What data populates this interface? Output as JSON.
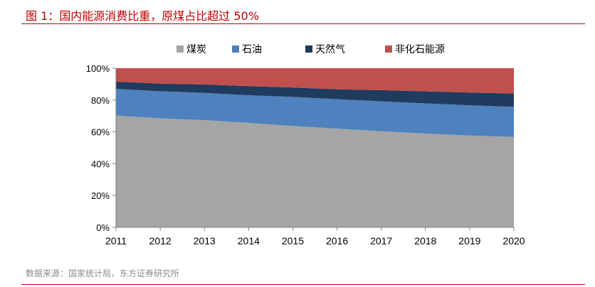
{
  "title": "图 1：国内能源消费比重，原煤占比超过 50%",
  "source": "数据来源：国家统计局，东方证券研究所",
  "chart_data": {
    "type": "area",
    "stacked": true,
    "x": [
      "2011",
      "2012",
      "2013",
      "2014",
      "2015",
      "2016",
      "2017",
      "2018",
      "2019",
      "2020"
    ],
    "ylim": [
      0,
      100
    ],
    "yticks": [
      "0%",
      "20%",
      "40%",
      "60%",
      "80%",
      "100%"
    ],
    "series": [
      {
        "name": "煤炭",
        "color": "#a5a5a5",
        "values": [
          70.2,
          68.5,
          67.4,
          65.6,
          63.7,
          62.0,
          60.4,
          59.0,
          57.7,
          56.8
        ]
      },
      {
        "name": "石油",
        "color": "#4e81bd",
        "values": [
          16.8,
          17.0,
          17.1,
          17.4,
          18.3,
          18.5,
          18.8,
          18.9,
          19.0,
          18.9
        ]
      },
      {
        "name": "天然气",
        "color": "#1f3b5e",
        "values": [
          4.6,
          4.8,
          5.3,
          5.7,
          5.9,
          6.2,
          7.0,
          7.6,
          8.0,
          8.4
        ]
      },
      {
        "name": "非化石能源",
        "color": "#c0504d",
        "values": [
          8.4,
          9.7,
          10.2,
          11.3,
          12.1,
          13.3,
          13.8,
          14.5,
          15.3,
          15.9
        ]
      }
    ],
    "legend": "top",
    "grid": false
  }
}
